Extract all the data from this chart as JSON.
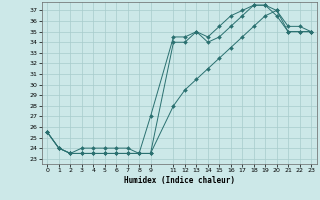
{
  "xlabel": "Humidex (Indice chaleur)",
  "ylabel": "",
  "bg_color": "#cce8e8",
  "grid_color": "#a8cccc",
  "line_color": "#2a7070",
  "line1_x": [
    0,
    1,
    2,
    3,
    4,
    5,
    6,
    7,
    8,
    9,
    11,
    12,
    13,
    14,
    15,
    16,
    17,
    18,
    19,
    20,
    21,
    22,
    23
  ],
  "line1_y": [
    25.5,
    24.0,
    23.5,
    24.0,
    24.0,
    24.0,
    24.0,
    24.0,
    23.5,
    27.0,
    34.5,
    34.5,
    35.0,
    34.5,
    35.5,
    36.5,
    37.0,
    37.5,
    37.5,
    36.5,
    35.0,
    35.0,
    35.0
  ],
  "line2_x": [
    0,
    1,
    2,
    3,
    4,
    5,
    6,
    7,
    8,
    9,
    11,
    12,
    13,
    14,
    15,
    16,
    17,
    18,
    19,
    20,
    21,
    22,
    23
  ],
  "line2_y": [
    25.5,
    24.0,
    23.5,
    23.5,
    23.5,
    23.5,
    23.5,
    23.5,
    23.5,
    23.5,
    34.0,
    34.0,
    35.0,
    34.0,
    34.5,
    35.5,
    36.5,
    37.5,
    37.5,
    37.0,
    35.5,
    35.5,
    35.0
  ],
  "line3_x": [
    0,
    1,
    2,
    3,
    4,
    5,
    6,
    7,
    8,
    9,
    11,
    12,
    13,
    14,
    15,
    16,
    17,
    18,
    19,
    20,
    21,
    22,
    23
  ],
  "line3_y": [
    25.5,
    24.0,
    23.5,
    23.5,
    23.5,
    23.5,
    23.5,
    23.5,
    23.5,
    23.5,
    28.0,
    29.5,
    30.5,
    31.5,
    32.5,
    33.5,
    34.5,
    35.5,
    36.5,
    37.0,
    35.0,
    35.0,
    35.0
  ],
  "xlim": [
    -0.5,
    23.5
  ],
  "ylim": [
    22.5,
    37.8
  ],
  "xticks": [
    0,
    1,
    2,
    3,
    4,
    5,
    6,
    7,
    8,
    9,
    11,
    12,
    13,
    14,
    15,
    16,
    17,
    18,
    19,
    20,
    21,
    22,
    23
  ],
  "yticks": [
    23,
    24,
    25,
    26,
    27,
    28,
    29,
    30,
    31,
    32,
    33,
    34,
    35,
    36,
    37
  ]
}
